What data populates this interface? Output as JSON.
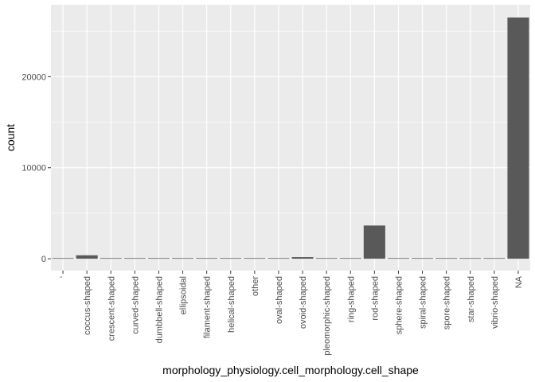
{
  "chart_data": {
    "type": "bar",
    "title": "",
    "xlabel": "morphology_physiology.cell_morphology.cell_shape",
    "ylabel": "count",
    "categories": [
      "'",
      "coccus-shaped",
      "crescent-shaped",
      "curved-shaped",
      "dumbbell-shaped",
      "ellipsoidal",
      "filament-shaped",
      "helical-shaped",
      "other",
      "oval-shaped",
      "ovoid-shaped",
      "pleomorphic-shaped",
      "ring-shaped",
      "rod-shaped",
      "sphere-shaped",
      "spiral-shaped",
      "spore-shaped",
      "star-shaped",
      "vibrio-shaped",
      "NA"
    ],
    "values": [
      1,
      380,
      5,
      5,
      5,
      8,
      60,
      8,
      8,
      5,
      180,
      25,
      5,
      3650,
      5,
      70,
      5,
      5,
      30,
      26500
    ],
    "ylim": [
      -1300,
      27900
    ],
    "y_ticks": [
      0,
      10000,
      20000
    ],
    "y_tick_labels": [
      "0",
      "10000",
      "20000"
    ],
    "grid": true,
    "legend": "none",
    "colors": {
      "panel": "#ebebeb",
      "grid": "#ffffff",
      "bar": "#595959"
    }
  }
}
